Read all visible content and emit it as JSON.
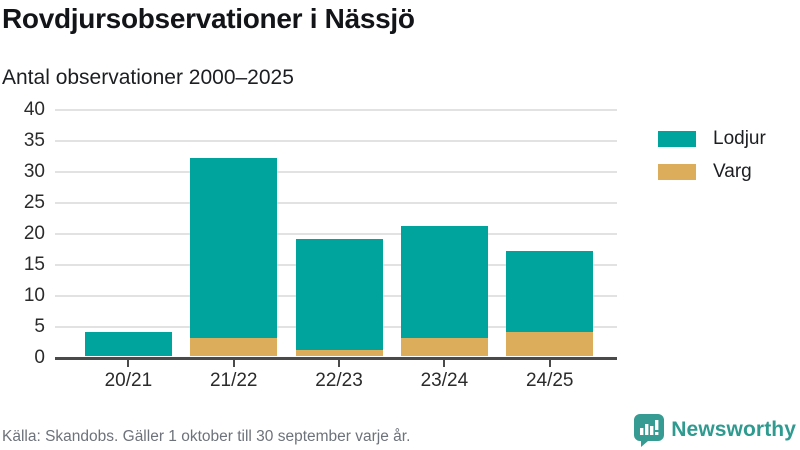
{
  "header": {
    "title": "Rovdjursobservationer i Nässjö",
    "subtitle": "Antal observationer 2000–2025"
  },
  "chart_data": {
    "type": "bar",
    "stacked": true,
    "title": "Rovdjursobservationer i Nässjö",
    "subtitle": "Antal observationer 2000–2025",
    "categories": [
      "20/21",
      "21/22",
      "22/23",
      "23/24",
      "24/25"
    ],
    "series": [
      {
        "name": "Lodjur",
        "color": "#00a49c",
        "values": [
          4,
          29,
          18,
          18,
          13
        ]
      },
      {
        "name": "Varg",
        "color": "#dcae5c",
        "values": [
          0,
          3,
          1,
          3,
          4
        ]
      }
    ],
    "stack_bottom_to_top": [
      "Varg",
      "Lodjur"
    ],
    "totals": [
      4,
      32,
      19,
      21,
      17
    ],
    "xlabel": "",
    "ylabel": "",
    "ylim": [
      0,
      40
    ],
    "yticks": [
      0,
      5,
      10,
      15,
      20,
      25,
      30,
      35,
      40
    ],
    "grid": true,
    "legend_position": "right",
    "colors": {
      "gridline": "#e2e2e2",
      "baseline": "#4a4a4a",
      "axis_text": "#2b2b2b"
    }
  },
  "footer": {
    "source": "Källa: Skandobs. Gäller 1 oktober till 30 september varje år."
  },
  "branding": {
    "logo_text": "Newsworthy",
    "logo_color": "#2f9a90",
    "logo_icon": "bar-chart-speech-bubble-icon"
  }
}
